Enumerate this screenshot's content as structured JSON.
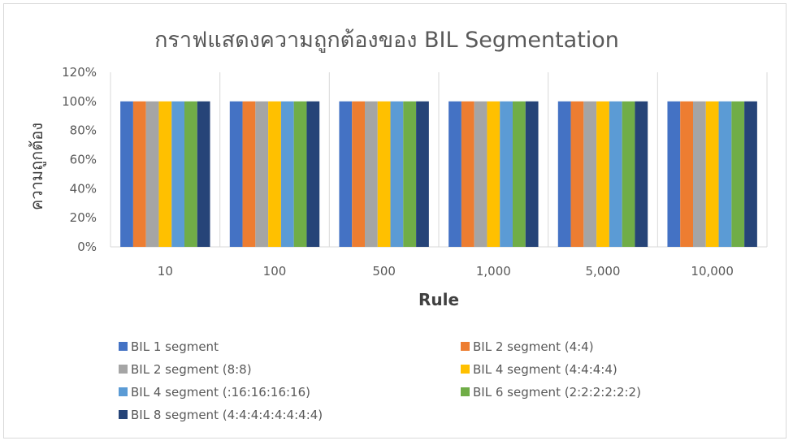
{
  "chart_data": {
    "type": "bar",
    "title": "กราฟแสดงความถูกต้องของ  BIL Segmentation",
    "xlabel": "Rule",
    "ylabel": "ความถูกต้อง",
    "categories": [
      "10",
      "100",
      "500",
      "1,000",
      "5,000",
      "10,000"
    ],
    "ylim": [
      0,
      120
    ],
    "yticks": [
      "0%",
      "20%",
      "40%",
      "60%",
      "80%",
      "100%",
      "120%"
    ],
    "grid": "vertical category separators",
    "legend_position": "bottom",
    "series": [
      {
        "name": "BIL 1 segment",
        "color": "#4472C4",
        "values": [
          100,
          100,
          100,
          100,
          100,
          100
        ]
      },
      {
        "name": "BIL 2 segment (4:4)",
        "color": "#ED7D31",
        "values": [
          100,
          100,
          100,
          100,
          100,
          100
        ]
      },
      {
        "name": "BIL 2 segment (8:8)",
        "color": "#A5A5A5",
        "values": [
          100,
          100,
          100,
          100,
          100,
          100
        ]
      },
      {
        "name": "BIL 4 segment (4:4:4:4)",
        "color": "#FFC000",
        "values": [
          100,
          100,
          100,
          100,
          100,
          100
        ]
      },
      {
        "name": "BIL 4 segment (:16:16:16:16)",
        "color": "#5B9BD5",
        "values": [
          100,
          100,
          100,
          100,
          100,
          100
        ]
      },
      {
        "name": "BIL 6 segment (2:2:2:2:2:2)",
        "color": "#70AD47",
        "values": [
          100,
          100,
          100,
          100,
          100,
          100
        ]
      },
      {
        "name": "BIL 8 segment (4:4:4:4:4:4:4:4)",
        "color": "#264478",
        "values": [
          100,
          100,
          100,
          100,
          100,
          100
        ]
      }
    ]
  }
}
